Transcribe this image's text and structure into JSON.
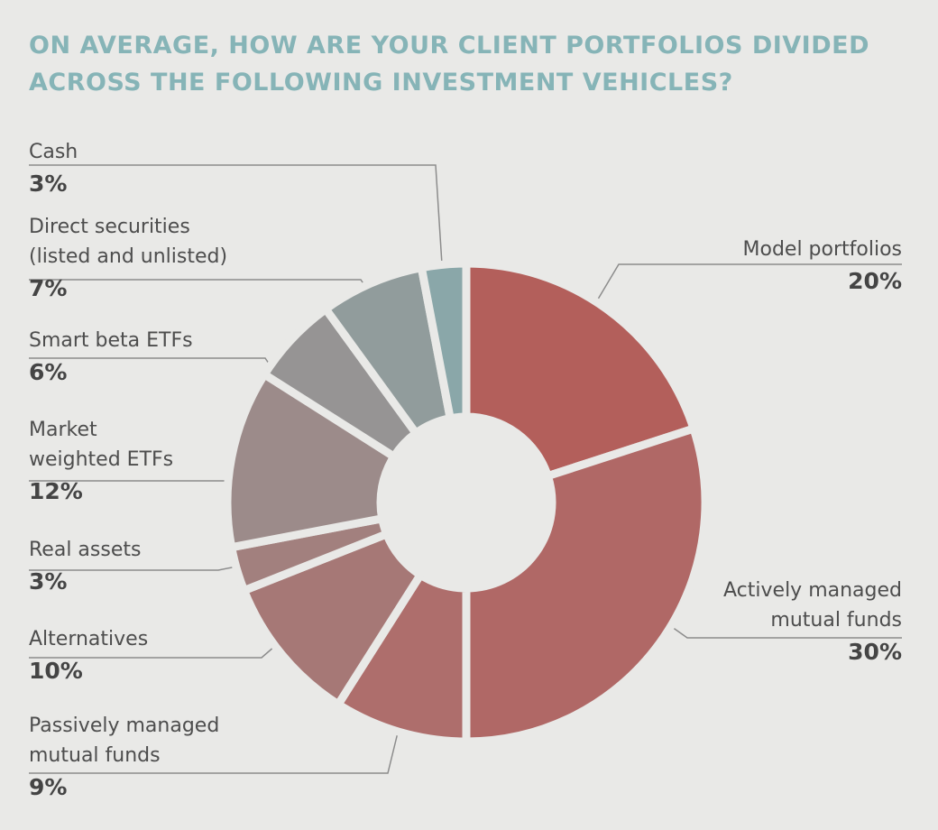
{
  "chart_data": {
    "type": "pie",
    "variant": "donut",
    "title": "ON AVERAGE, HOW ARE YOUR CLIENT PORTFOLIOS DIVIDED ACROSS THE FOLLOWING INVESTMENT VEHICLES?",
    "title_lines": [
      "ON AVERAGE, HOW ARE YOUR CLIENT PORTFOLIOS DIVIDED",
      "ACROSS THE FOLLOWING INVESTMENT VEHICLES?"
    ],
    "slices": [
      {
        "label": "Model portfolios",
        "label_lines": [
          "Model portfolios"
        ],
        "value": 20,
        "display": "20%",
        "color": "#b35f5b"
      },
      {
        "label": "Actively managed mutual funds",
        "label_lines": [
          "Actively managed",
          "mutual funds"
        ],
        "value": 30,
        "display": "30%",
        "color": "#b06866"
      },
      {
        "label": "Passively managed mutual funds",
        "label_lines": [
          "Passively managed",
          "mutual funds"
        ],
        "value": 9,
        "display": "9%",
        "color": "#ae6e6c"
      },
      {
        "label": "Alternatives",
        "label_lines": [
          "Alternatives"
        ],
        "value": 10,
        "display": "10%",
        "color": "#a67876"
      },
      {
        "label": "Real assets",
        "label_lines": [
          "Real assets"
        ],
        "value": 3,
        "display": "3%",
        "color": "#a2807e"
      },
      {
        "label": "Market weighted ETFs",
        "label_lines": [
          "Market",
          "weighted ETFs"
        ],
        "value": 12,
        "display": "12%",
        "color": "#9c8b8a"
      },
      {
        "label": "Smart beta ETFs",
        "label_lines": [
          "Smart beta ETFs"
        ],
        "value": 6,
        "display": "6%",
        "color": "#969494"
      },
      {
        "label": "Direct securities (listed and unlisted)",
        "label_lines": [
          "Direct securities",
          "(listed and unlisted)"
        ],
        "value": 7,
        "display": "7%",
        "color": "#919c9c"
      },
      {
        "label": "Cash",
        "label_lines": [
          "Cash"
        ],
        "value": 3,
        "display": "3%",
        "color": "#8aa7a9"
      }
    ]
  }
}
